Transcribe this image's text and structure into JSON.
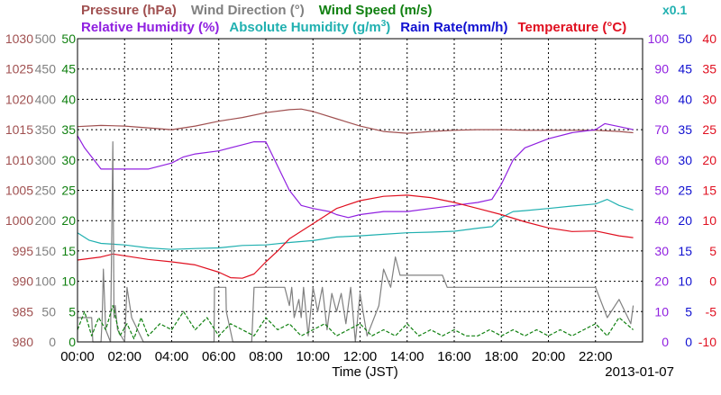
{
  "chart_data": {
    "type": "line",
    "date_label": "2013-01-07",
    "xlabel": "Time (JST)",
    "x_range_hours": [
      0,
      24
    ],
    "x_ticks": [
      "00:00",
      "02:00",
      "04:00",
      "06:00",
      "08:00",
      "10:00",
      "12:00",
      "14:00",
      "16:00",
      "18:00",
      "20:00",
      "22:00"
    ],
    "grid": true,
    "legend": {
      "row1": [
        {
          "key": "pressure",
          "label": "Pressure (hPa)",
          "color": "#a05050"
        },
        {
          "key": "wind_direction",
          "label": "Wind Direction (°)",
          "color": "#808080"
        },
        {
          "key": "wind_speed",
          "label": "Wind Speed (m/s)",
          "color": "#108010"
        }
      ],
      "row2": [
        {
          "key": "relative_humidity",
          "label": "Relative Humidity (%)",
          "color": "#9020e0"
        },
        {
          "key": "absolute_humidity",
          "label_main": "Absolute Humidity (g/m",
          "label_sup": "3",
          "label_end": ")",
          "color": "#20b0b0"
        },
        {
          "key": "rain_rate",
          "label": "Rain Rate(mm/h)",
          "color": "#1010d0"
        },
        {
          "key": "temperature",
          "label": "Temperature (°C)",
          "color": "#e01020"
        }
      ],
      "multiplier": {
        "label": "x0.1",
        "color": "#20b0b0"
      }
    },
    "axes": [
      {
        "key": "pressure",
        "side": "left",
        "color": "#a05050",
        "min": 980,
        "max": 1030,
        "ticks": [
          "980",
          "985",
          "990",
          "995",
          "1000",
          "1005",
          "1010",
          "1015",
          "1020",
          "1025",
          "1030"
        ]
      },
      {
        "key": "wind_direction",
        "side": "left",
        "color": "#808080",
        "min": 0,
        "max": 500,
        "ticks": [
          "0",
          "50",
          "100",
          "150",
          "200",
          "250",
          "300",
          "350",
          "400",
          "450",
          "500"
        ]
      },
      {
        "key": "wind_speed",
        "side": "left",
        "color": "#108010",
        "min": 0,
        "max": 50,
        "ticks": [
          "0",
          "5",
          "10",
          "15",
          "20",
          "25",
          "30",
          "35",
          "40",
          "45",
          "50"
        ]
      },
      {
        "key": "relative_humidity",
        "side": "right",
        "color": "#9020e0",
        "min": 0,
        "max": 100,
        "ticks": [
          "0",
          "10",
          "20",
          "30",
          "40",
          "50",
          "60",
          "70",
          "80",
          "90",
          "100"
        ]
      },
      {
        "key": "rain_rate",
        "side": "right",
        "color": "#1010d0",
        "min": 0,
        "max": 50,
        "ticks": [
          "0",
          "5",
          "10",
          "15",
          "20",
          "25",
          "30",
          "35",
          "40",
          "45",
          "50"
        ]
      },
      {
        "key": "temperature",
        "side": "right",
        "color": "#e01020",
        "min": -10,
        "max": 40,
        "ticks": [
          "-10",
          "-5",
          "0",
          "5",
          "10",
          "15",
          "20",
          "25",
          "30",
          "35",
          "40"
        ]
      }
    ],
    "series": [
      {
        "name": "Pressure (hPa)",
        "axis": "pressure",
        "color": "#a05050",
        "dash": "",
        "x": [
          0,
          1,
          2,
          3,
          4,
          5,
          6,
          7,
          8,
          9,
          9.5,
          10,
          11,
          12,
          13,
          14,
          15,
          16,
          17,
          18,
          19,
          20,
          21,
          22,
          23,
          23.6
        ],
        "y": [
          1015.5,
          1015.7,
          1015.6,
          1015.3,
          1015.0,
          1015.6,
          1016.4,
          1017.0,
          1017.8,
          1018.3,
          1018.4,
          1018.0,
          1016.8,
          1015.6,
          1014.7,
          1014.4,
          1014.7,
          1014.9,
          1015.0,
          1015.0,
          1014.9,
          1014.9,
          1014.9,
          1014.9,
          1014.7,
          1014.5
        ]
      },
      {
        "name": "Relative Humidity (%)",
        "axis": "relative_humidity",
        "color": "#9020e0",
        "dash": "",
        "x": [
          0,
          0.3,
          0.7,
          1.0,
          2.0,
          3.0,
          4.0,
          4.5,
          5.0,
          6.0,
          7.0,
          7.5,
          8.0,
          9.0,
          9.5,
          10.0,
          10.7,
          11.0,
          11.5,
          12.0,
          13.0,
          14.0,
          15.0,
          16.0,
          17.0,
          17.6,
          18.0,
          18.5,
          19.0,
          20.0,
          21.0,
          22.0,
          22.4,
          23.0,
          23.6
        ],
        "y": [
          68,
          64,
          60,
          57,
          57,
          57,
          59,
          61,
          62,
          63,
          65,
          66,
          66,
          50,
          45,
          44,
          43,
          42,
          41,
          42,
          43,
          43,
          44,
          45,
          46,
          47,
          52,
          60,
          64,
          67,
          69,
          70,
          72,
          71,
          70
        ]
      },
      {
        "name": "Absolute Humidity (g/m3)",
        "axis": "relative_humidity",
        "color": "#20b0b0",
        "dash": "",
        "x": [
          0,
          0.5,
          1,
          2,
          3,
          4,
          5,
          6,
          7,
          8,
          9,
          10,
          11,
          12,
          13,
          14,
          15,
          16,
          17,
          17.6,
          18,
          18.5,
          19,
          20,
          21,
          22,
          22.5,
          23,
          23.6
        ],
        "y": [
          36,
          33.5,
          32.5,
          32,
          31,
          30.5,
          30.8,
          31,
          31.8,
          32,
          32.8,
          33.4,
          34.6,
          35,
          35.5,
          36,
          36.2,
          36.5,
          37.5,
          38,
          41,
          43,
          43.3,
          44,
          44.8,
          45.5,
          47,
          45,
          43.5
        ]
      },
      {
        "name": "Temperature (°C)",
        "axis": "temperature",
        "color": "#e01020",
        "dash": "",
        "x": [
          0,
          1,
          1.5,
          2,
          3,
          4,
          5,
          6,
          6.5,
          7,
          7.5,
          8,
          8.5,
          9,
          10,
          11,
          12,
          13,
          14,
          15,
          16,
          17,
          18,
          19,
          20,
          21,
          22,
          23,
          23.6
        ],
        "y": [
          3.5,
          4,
          4.5,
          4.2,
          3.6,
          3.2,
          2.7,
          1.5,
          0.6,
          0.5,
          1.2,
          3.2,
          5,
          7,
          9.5,
          12,
          13.3,
          14,
          14.2,
          13.8,
          13,
          12,
          11,
          9.8,
          8.8,
          8.2,
          8.3,
          7.5,
          7.2
        ]
      },
      {
        "name": "Wind Direction (°)",
        "axis": "wind_direction",
        "color": "#808080",
        "dash": "",
        "x": [
          0,
          0.6,
          0.65,
          1.0,
          1.05,
          1.1,
          1.2,
          1.4,
          1.5,
          1.55,
          1.6,
          1.7,
          2.0,
          2.1,
          2.3,
          2.8,
          3.0,
          5.0,
          5.8,
          5.82,
          6.3,
          6.32,
          6.6,
          7.4,
          7.5,
          8.8,
          9.0,
          9.1,
          9.2,
          9.4,
          9.5,
          9.6,
          9.8,
          10.0,
          10.2,
          10.4,
          10.6,
          10.8,
          11.0,
          11.2,
          11.4,
          11.6,
          11.8,
          12.0,
          12.3,
          12.8,
          13.0,
          13.3,
          13.5,
          13.7,
          15.0,
          15.5,
          15.7,
          16.0,
          20.0,
          22.0,
          22.5,
          23.0,
          23.5,
          23.6
        ],
        "y": [
          40,
          40,
          0,
          0,
          40,
          120,
          20,
          0,
          330,
          40,
          60,
          20,
          0,
          90,
          40,
          0,
          0,
          0,
          0,
          90,
          90,
          50,
          0,
          0,
          90,
          90,
          60,
          90,
          40,
          70,
          40,
          90,
          10,
          90,
          50,
          90,
          20,
          80,
          50,
          80,
          30,
          90,
          0,
          80,
          10,
          60,
          120,
          90,
          140,
          110,
          110,
          110,
          90,
          90,
          90,
          90,
          40,
          70,
          30,
          60
        ]
      },
      {
        "name": "Wind Speed (m/s)",
        "axis": "wind_speed",
        "color": "#108010",
        "dash": "4,2",
        "x": [
          0,
          0.3,
          0.6,
          0.9,
          1.2,
          1.5,
          1.8,
          2.1,
          2.4,
          2.7,
          3,
          3.5,
          4,
          4.5,
          5,
          5.5,
          6,
          6.5,
          7,
          7.5,
          8,
          8.5,
          9,
          9.5,
          10,
          10.5,
          11,
          11.5,
          12,
          12.5,
          13,
          13.5,
          14,
          14.5,
          15,
          15.5,
          16,
          16.5,
          17,
          17.5,
          18,
          18.5,
          19,
          19.5,
          20,
          20.5,
          21,
          21.5,
          22,
          22.5,
          23,
          23.6
        ],
        "y": [
          2,
          5,
          1,
          4,
          2,
          6,
          1,
          3,
          0.5,
          4,
          1,
          3,
          2,
          5,
          2,
          4,
          1,
          3,
          2,
          1,
          4,
          2,
          3,
          1,
          2,
          3,
          1,
          2,
          3,
          1,
          2,
          1,
          3,
          1,
          2,
          1,
          2,
          1,
          1,
          2,
          1,
          2,
          1,
          2,
          1,
          2,
          1,
          2,
          3,
          1,
          4,
          2
        ]
      }
    ]
  }
}
